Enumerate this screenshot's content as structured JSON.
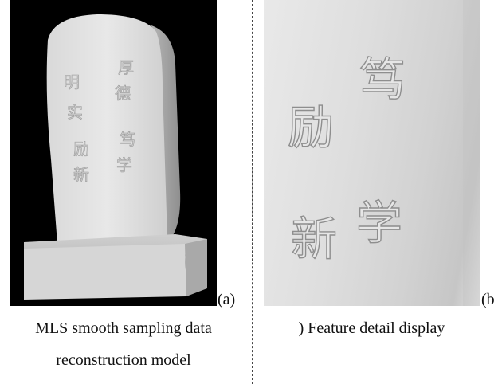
{
  "figure": {
    "panel_a": {
      "label": "(a)",
      "caption_lines": [
        "MLS smooth sampling data",
        "reconstruction model"
      ],
      "stele_chars_right": [
        "厚",
        "德",
        "笃",
        "学"
      ],
      "stele_chars_left": [
        "明",
        "实",
        "励",
        "新"
      ]
    },
    "panel_b": {
      "label": "(b",
      "caption": ") Feature detail display",
      "relief_chars_right": [
        "笃",
        "学"
      ],
      "relief_chars_left": [
        "励",
        "新"
      ]
    }
  }
}
